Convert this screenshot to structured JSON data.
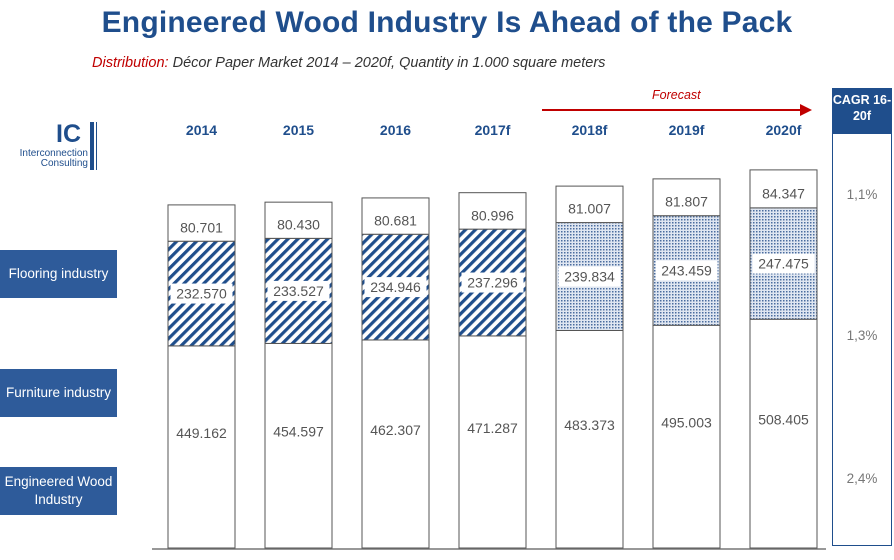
{
  "header": {
    "title": "Engineered Wood Industry Is Ahead of the Pack",
    "subtitle_lead": "Distribution:",
    "subtitle_rest": " Décor Paper Market 2014 – 2020f, Quantity in 1.000 square meters"
  },
  "logo": {
    "mark": "IC",
    "line1": "Interconnection",
    "line2": "Consulting"
  },
  "segments": {
    "flooring": "Flooring industry",
    "furniture": "Furniture industry",
    "engineered": "Engineered Wood Industry"
  },
  "forecast_label": "Forecast",
  "cagr": {
    "header": "CAGR 16-20f",
    "values": {
      "top": "1,1%",
      "middle": "1,3%",
      "bottom": "2,4%"
    }
  },
  "colors": {
    "navy": "#1f4e8c",
    "label_blue": "#2e5b9a",
    "red": "#c00000"
  },
  "chart_data": {
    "type": "bar",
    "stacked": true,
    "categories": [
      "2014",
      "2015",
      "2016",
      "2017f",
      "2018f",
      "2019f",
      "2020f"
    ],
    "forecast_start_index": 4,
    "series": [
      {
        "name": "Engineered Wood Industry",
        "values": [
          449162,
          454597,
          462307,
          471287,
          483373,
          495003,
          508405
        ],
        "labels": [
          "449.162",
          "454.597",
          "462.307",
          "471.287",
          "483.373",
          "495.003",
          "508.405"
        ]
      },
      {
        "name": "Flooring industry",
        "values": [
          232570,
          233527,
          234946,
          237296,
          239834,
          243459,
          247475
        ],
        "labels": [
          "232.570",
          "233.527",
          "234.946",
          "237.296",
          "239.834",
          "243.459",
          "247.475"
        ]
      },
      {
        "name": "Furniture industry",
        "values": [
          80701,
          80430,
          80681,
          80996,
          81007,
          81807,
          84347
        ],
        "labels": [
          "80.701",
          "80.430",
          "80.681",
          "80.996",
          "81.007",
          "81.807",
          "84.347"
        ]
      }
    ]
  }
}
